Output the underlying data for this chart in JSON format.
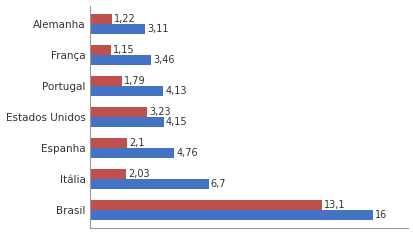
{
  "categories": [
    "Brasil",
    "Itália",
    "Espanha",
    "Estados Unidos",
    "Portugal",
    "França",
    "Alemanha"
  ],
  "values_red": [
    13.1,
    2.03,
    2.1,
    3.23,
    1.79,
    1.15,
    1.22
  ],
  "values_blue": [
    16,
    6.7,
    4.76,
    4.15,
    4.13,
    3.46,
    3.11
  ],
  "labels_red": [
    "13,1",
    "2,03",
    "2,1",
    "3,23",
    "1,79",
    "1,15",
    "1,22"
  ],
  "labels_blue": [
    "16",
    "6,7",
    "4,76",
    "4,15",
    "4,13",
    "3,46",
    "3,11"
  ],
  "color_red": "#c0504d",
  "color_blue": "#4472c4",
  "bar_height": 0.32,
  "xlim": [
    0,
    18
  ],
  "label_fontsize": 7,
  "tick_fontsize": 7.5,
  "figsize": [
    4.14,
    2.34
  ],
  "dpi": 100,
  "background_color": "#ffffff",
  "spine_color": "#999999"
}
